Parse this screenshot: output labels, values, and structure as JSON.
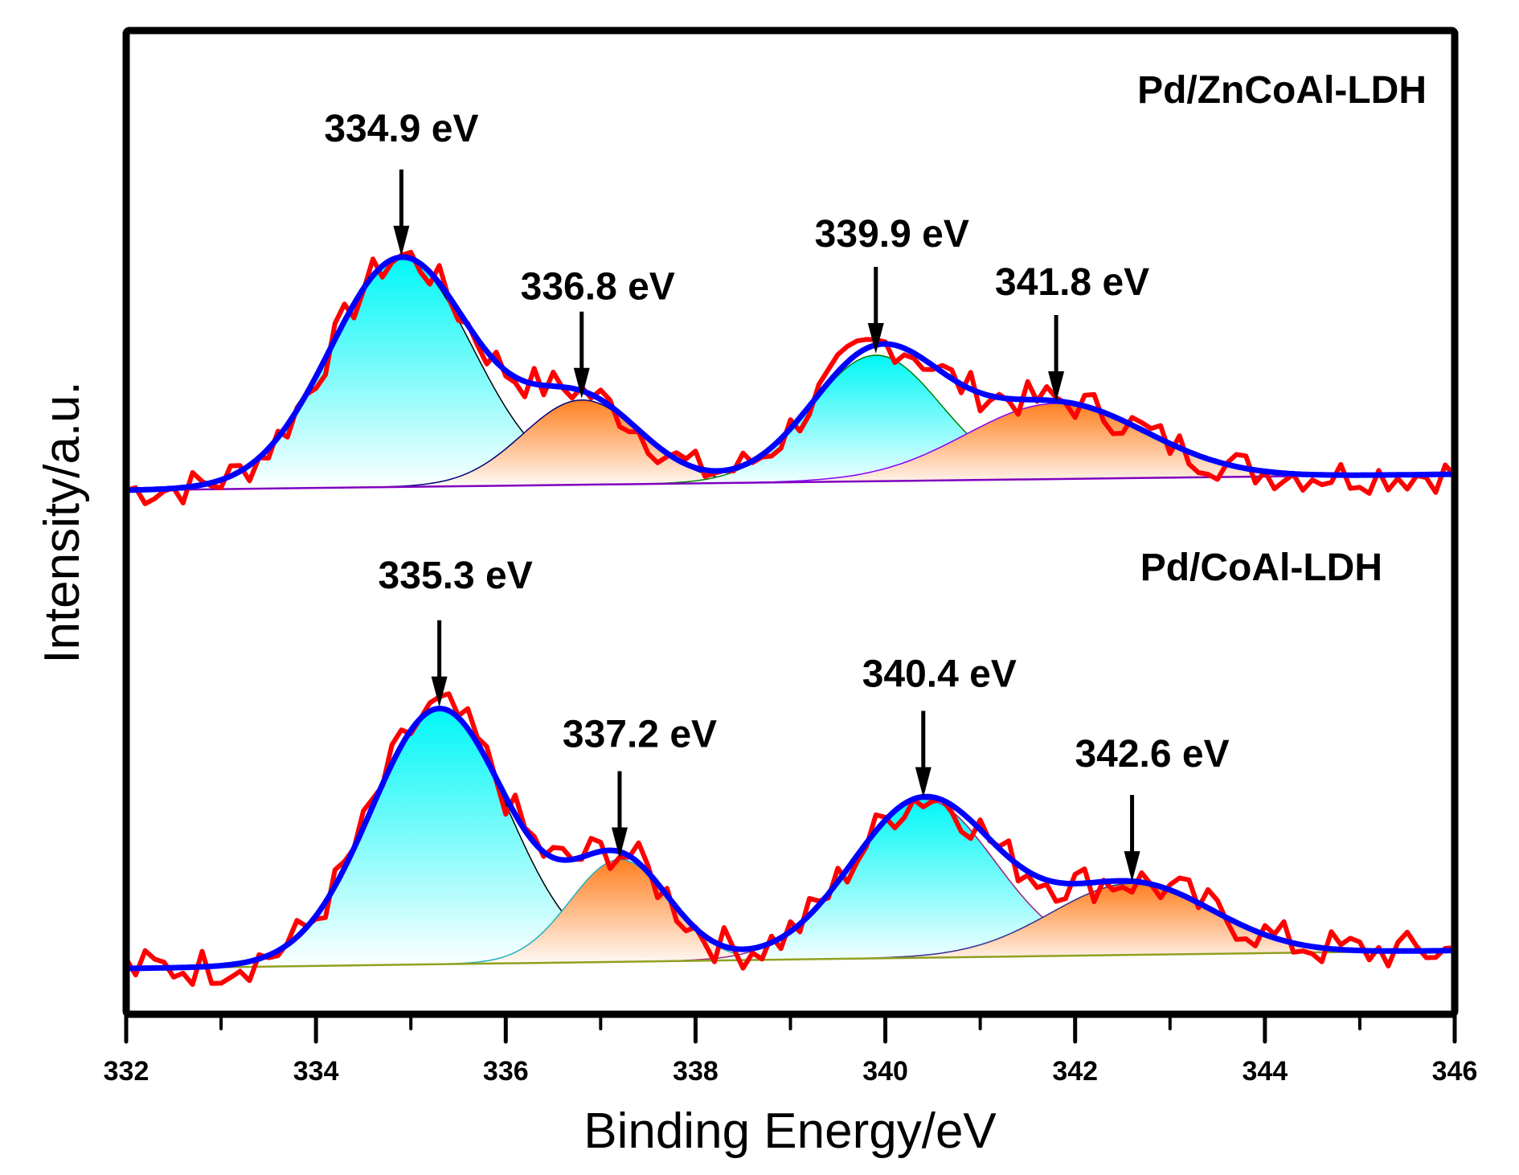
{
  "chart_data": {
    "type": "line",
    "title": "",
    "xlabel": "Binding Energy/eV",
    "ylabel": "Intensity/a.u.",
    "xlim": [
      332,
      346
    ],
    "x_ticks": [
      332,
      334,
      336,
      338,
      340,
      342,
      344,
      346
    ],
    "x_tick_labels": [
      "332",
      "334",
      "336",
      "338",
      "340",
      "342",
      "344",
      "346"
    ],
    "x_minor_ticks": [
      333,
      335,
      337,
      339,
      341,
      343,
      345
    ],
    "y_ticks_shown": false,
    "grid": false,
    "legend": null,
    "panels": [
      {
        "name": "Pd/ZnCoAl-LDH",
        "label_position": "top-right",
        "baseline": {
          "start": [
            332,
            0
          ],
          "end": [
            346,
            0.07
          ]
        },
        "components": [
          {
            "center": 334.9,
            "label": "334.9 eV",
            "intensity": 1.0,
            "sigma": 0.75,
            "fill": "cyan"
          },
          {
            "center": 336.8,
            "label": "336.8 eV",
            "intensity": 0.37,
            "sigma": 0.62,
            "fill": "orange"
          },
          {
            "center": 339.9,
            "label": "339.9 eV",
            "intensity": 0.55,
            "sigma": 0.68,
            "fill": "cyan"
          },
          {
            "center": 341.8,
            "label": "341.8 eV",
            "intensity": 0.33,
            "sigma": 0.95,
            "fill": "orange"
          }
        ],
        "series": [
          {
            "name": "raw data",
            "color": "#ff0000"
          },
          {
            "name": "envelope fit",
            "color": "#0000ff"
          }
        ]
      },
      {
        "name": "Pd/CoAl-LDH",
        "label_position": "middle-right",
        "baseline": {
          "start": [
            332,
            0
          ],
          "end": [
            346,
            0.07
          ]
        },
        "components": [
          {
            "center": 335.3,
            "label": "335.3 eV",
            "intensity": 1.0,
            "sigma": 0.72,
            "fill": "cyan"
          },
          {
            "center": 337.2,
            "label": "337.2 eV",
            "intensity": 0.4,
            "sigma": 0.52,
            "fill": "orange"
          },
          {
            "center": 340.4,
            "label": "340.4 eV",
            "intensity": 0.62,
            "sigma": 0.75,
            "fill": "cyan"
          },
          {
            "center": 342.6,
            "label": "342.6 eV",
            "intensity": 0.28,
            "sigma": 0.85,
            "fill": "orange"
          }
        ],
        "series": [
          {
            "name": "raw data",
            "color": "#ff0000"
          },
          {
            "name": "envelope fit",
            "color": "#0000ff"
          }
        ]
      }
    ]
  },
  "colors": {
    "raw": "#ff0000",
    "fit": "#0000ff",
    "cyan_fill": "#00f5f5",
    "orange_fill": "#ff8020",
    "axis": "#000000"
  }
}
